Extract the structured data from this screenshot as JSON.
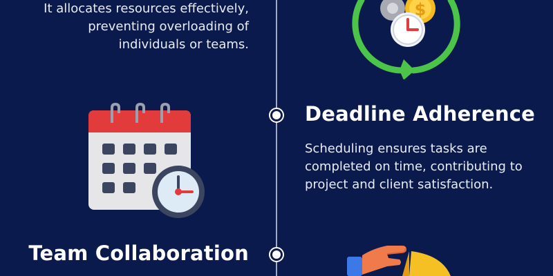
{
  "top_section": {
    "description_lines": [
      "It allocates resources effectively,",
      "preventing overloading of",
      "individuals or teams."
    ]
  },
  "deadline_section": {
    "title": "Deadline Adherence",
    "description_lines": [
      "Scheduling ensures tasks are",
      "completed on time, contributing to",
      "project and client satisfaction."
    ]
  },
  "collaboration_section": {
    "title": "Team Collaboration"
  },
  "icons": {
    "resource_icon": "gear-coin-clock-cycle-icon",
    "calendar_icon": "calendar-clock-icon",
    "collaboration_icon": "hand-pie-chart-icon"
  },
  "colors": {
    "background": "#0b1a4d",
    "accent_green": "#4cc44a",
    "calendar_red": "#e23b3b",
    "coin_gold": "#f5b921"
  }
}
